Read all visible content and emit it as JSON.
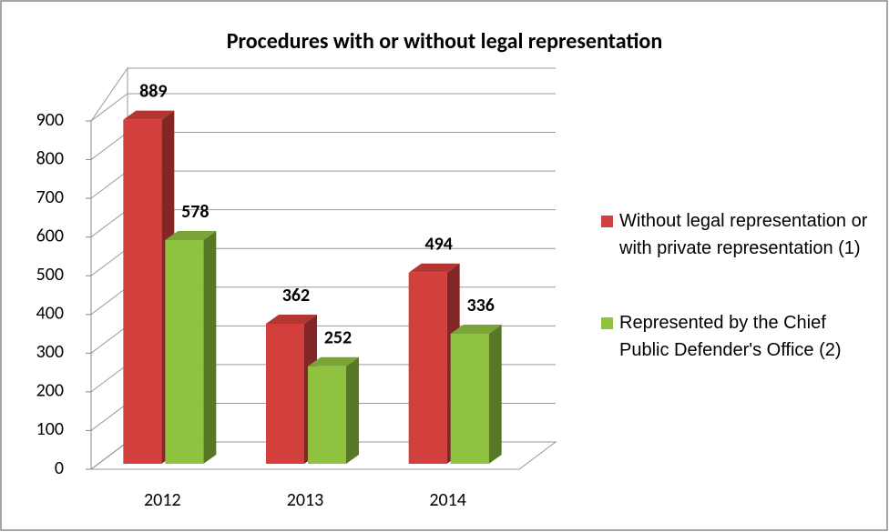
{
  "chart_data": {
    "type": "bar3d",
    "title": "Procedures with or without legal representation",
    "categories": [
      "2012",
      "2013",
      "2014"
    ],
    "series": [
      {
        "name": "Without legal representation or with private representation (1)",
        "color": "#d23f3c",
        "values": [
          889,
          362,
          494
        ]
      },
      {
        "name": "Represented by the Chief Public Defender's Office (2)",
        "color": "#8fc23f",
        "values": [
          578,
          252,
          336
        ]
      }
    ],
    "ylim": [
      0,
      900
    ],
    "yticks": [
      0,
      100,
      200,
      300,
      400,
      500,
      600,
      700,
      800,
      900
    ],
    "grid": true,
    "legend": "right"
  }
}
